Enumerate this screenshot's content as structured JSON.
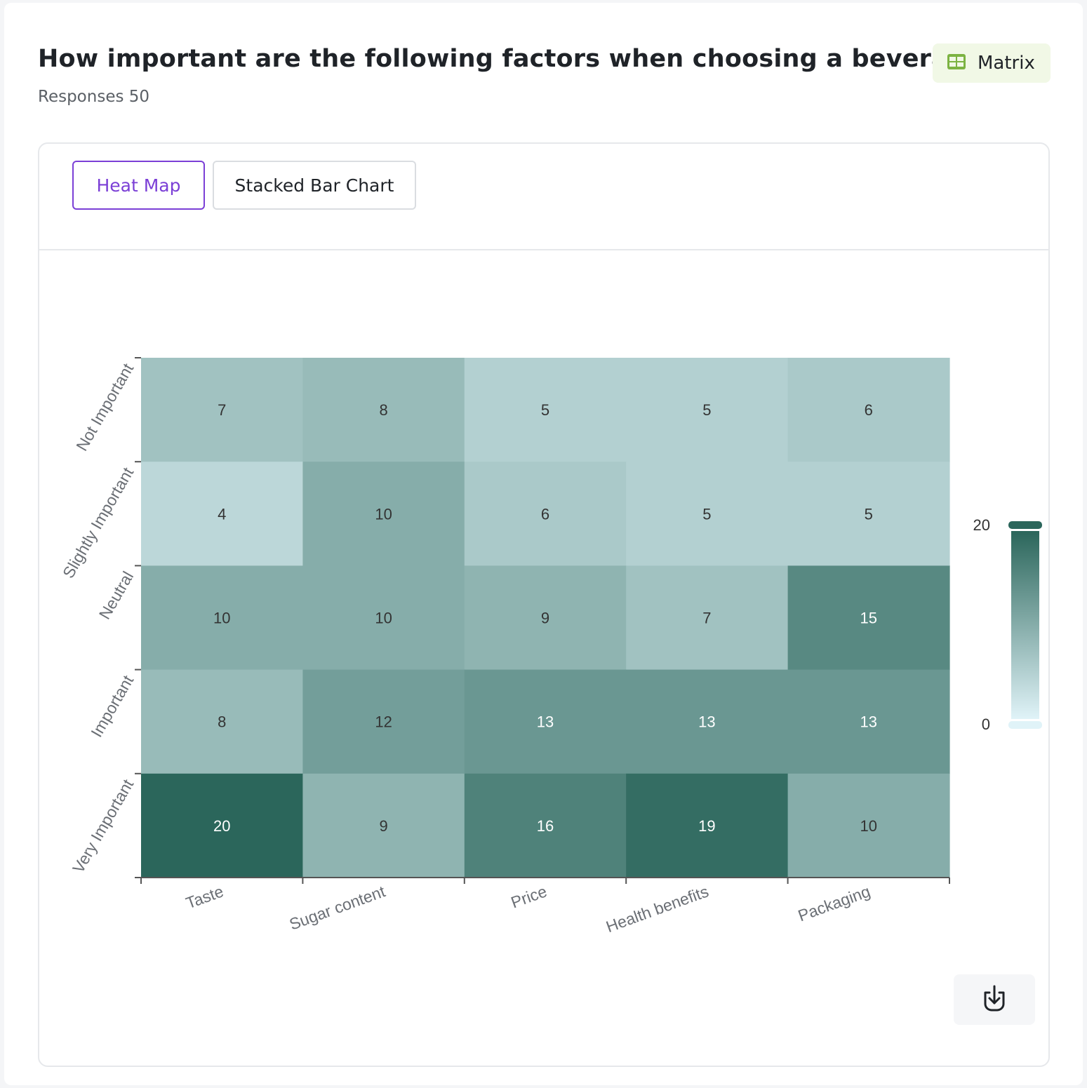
{
  "question": {
    "title": "How important are the following factors when choosing a beverage?",
    "responses_label": "Responses 50"
  },
  "badge": {
    "label": "Matrix",
    "icon": "table-icon",
    "color": "#7cb342"
  },
  "tabs": [
    {
      "label": "Heat Map",
      "active": true
    },
    {
      "label": "Stacked Bar Chart",
      "active": false
    }
  ],
  "download": {
    "icon": "download-icon"
  },
  "colors": {
    "accent": "#7b3fd6",
    "scale_low": "#e0f3f8",
    "scale_high": "#2b665b"
  },
  "chart_data": {
    "type": "heatmap",
    "title": "",
    "xlabel": "",
    "ylabel": "",
    "x_categories": [
      "Taste",
      "Sugar content",
      "Price",
      "Health benefits",
      "Packaging"
    ],
    "y_categories": [
      "Not Important",
      "Slightly Important",
      "Neutral",
      "Important",
      "Very Important"
    ],
    "values": [
      [
        7,
        8,
        5,
        5,
        6
      ],
      [
        4,
        10,
        6,
        5,
        5
      ],
      [
        10,
        10,
        9,
        7,
        15
      ],
      [
        8,
        12,
        13,
        13,
        13
      ],
      [
        20,
        9,
        16,
        19,
        10
      ]
    ],
    "scale": {
      "min": 0,
      "max": 20,
      "min_label": "0",
      "max_label": "20"
    },
    "legend": "right"
  }
}
